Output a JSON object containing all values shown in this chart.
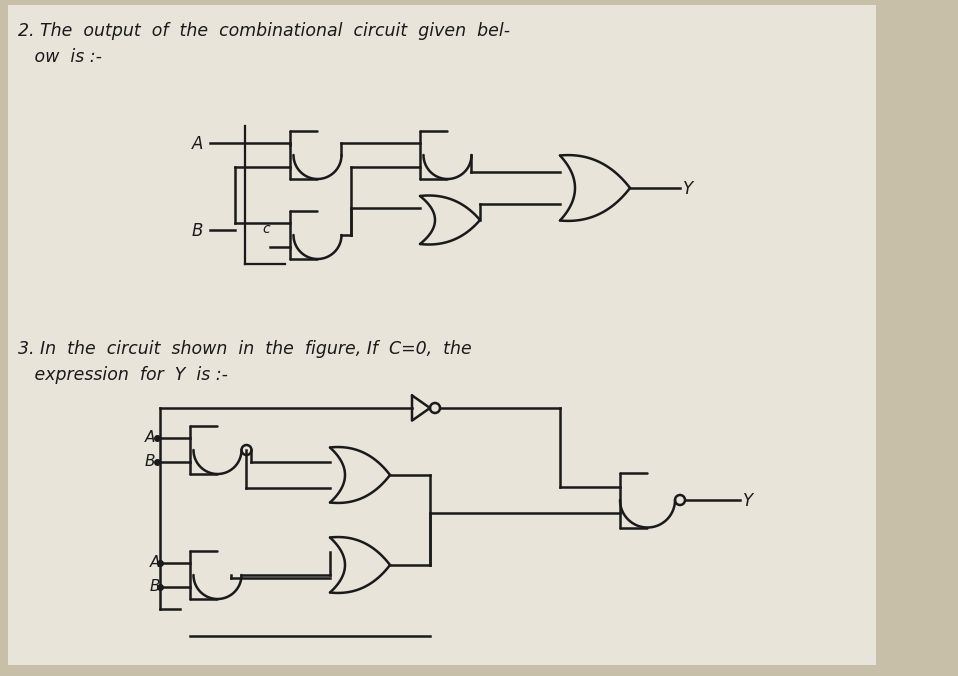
{
  "bg_color": "#c8bfa8",
  "page_color": "#e8e4da",
  "line_color": "#1a1a1a",
  "text_color": "#1a1a1a",
  "fig_width": 9.58,
  "fig_height": 6.76,
  "title1": "2. The  output  of  the  combinational  circuit  given  bel-",
  "title1b": "   ow  is :-",
  "title2": "3. In  the  circuit  shown  in  the  figure, If  C=0,  the",
  "title2b": "   expression  for  Y  is :-"
}
